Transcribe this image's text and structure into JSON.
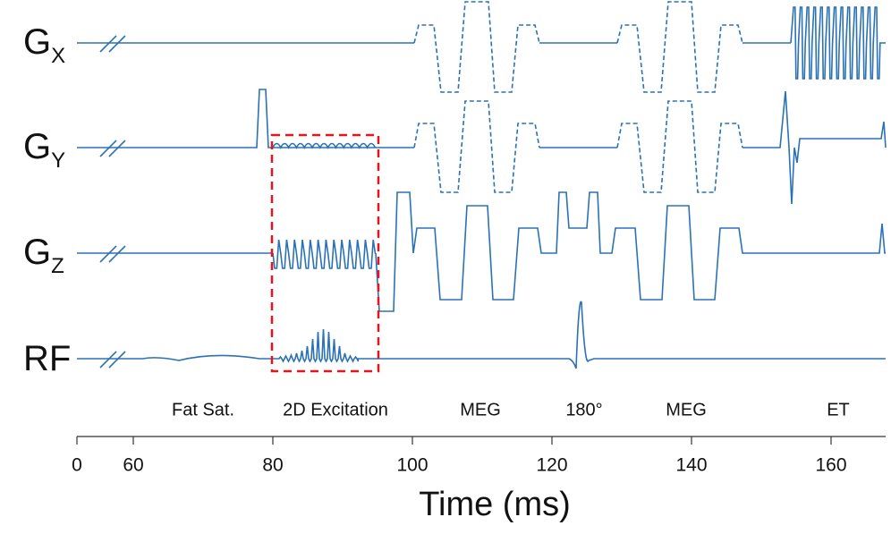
{
  "channels": [
    {
      "name": "G",
      "subscript": "X"
    },
    {
      "name": "G",
      "subscript": "Y"
    },
    {
      "name": "G",
      "subscript": "Z"
    },
    {
      "name": "RF"
    }
  ],
  "segments": [
    "Fat Sat.",
    "2D Excitation",
    "MEG",
    "180°",
    "MEG",
    "ET"
  ],
  "axis": {
    "title": "Time (ms)",
    "ticks": [
      0,
      60,
      80,
      100,
      120,
      140,
      160
    ]
  }
}
